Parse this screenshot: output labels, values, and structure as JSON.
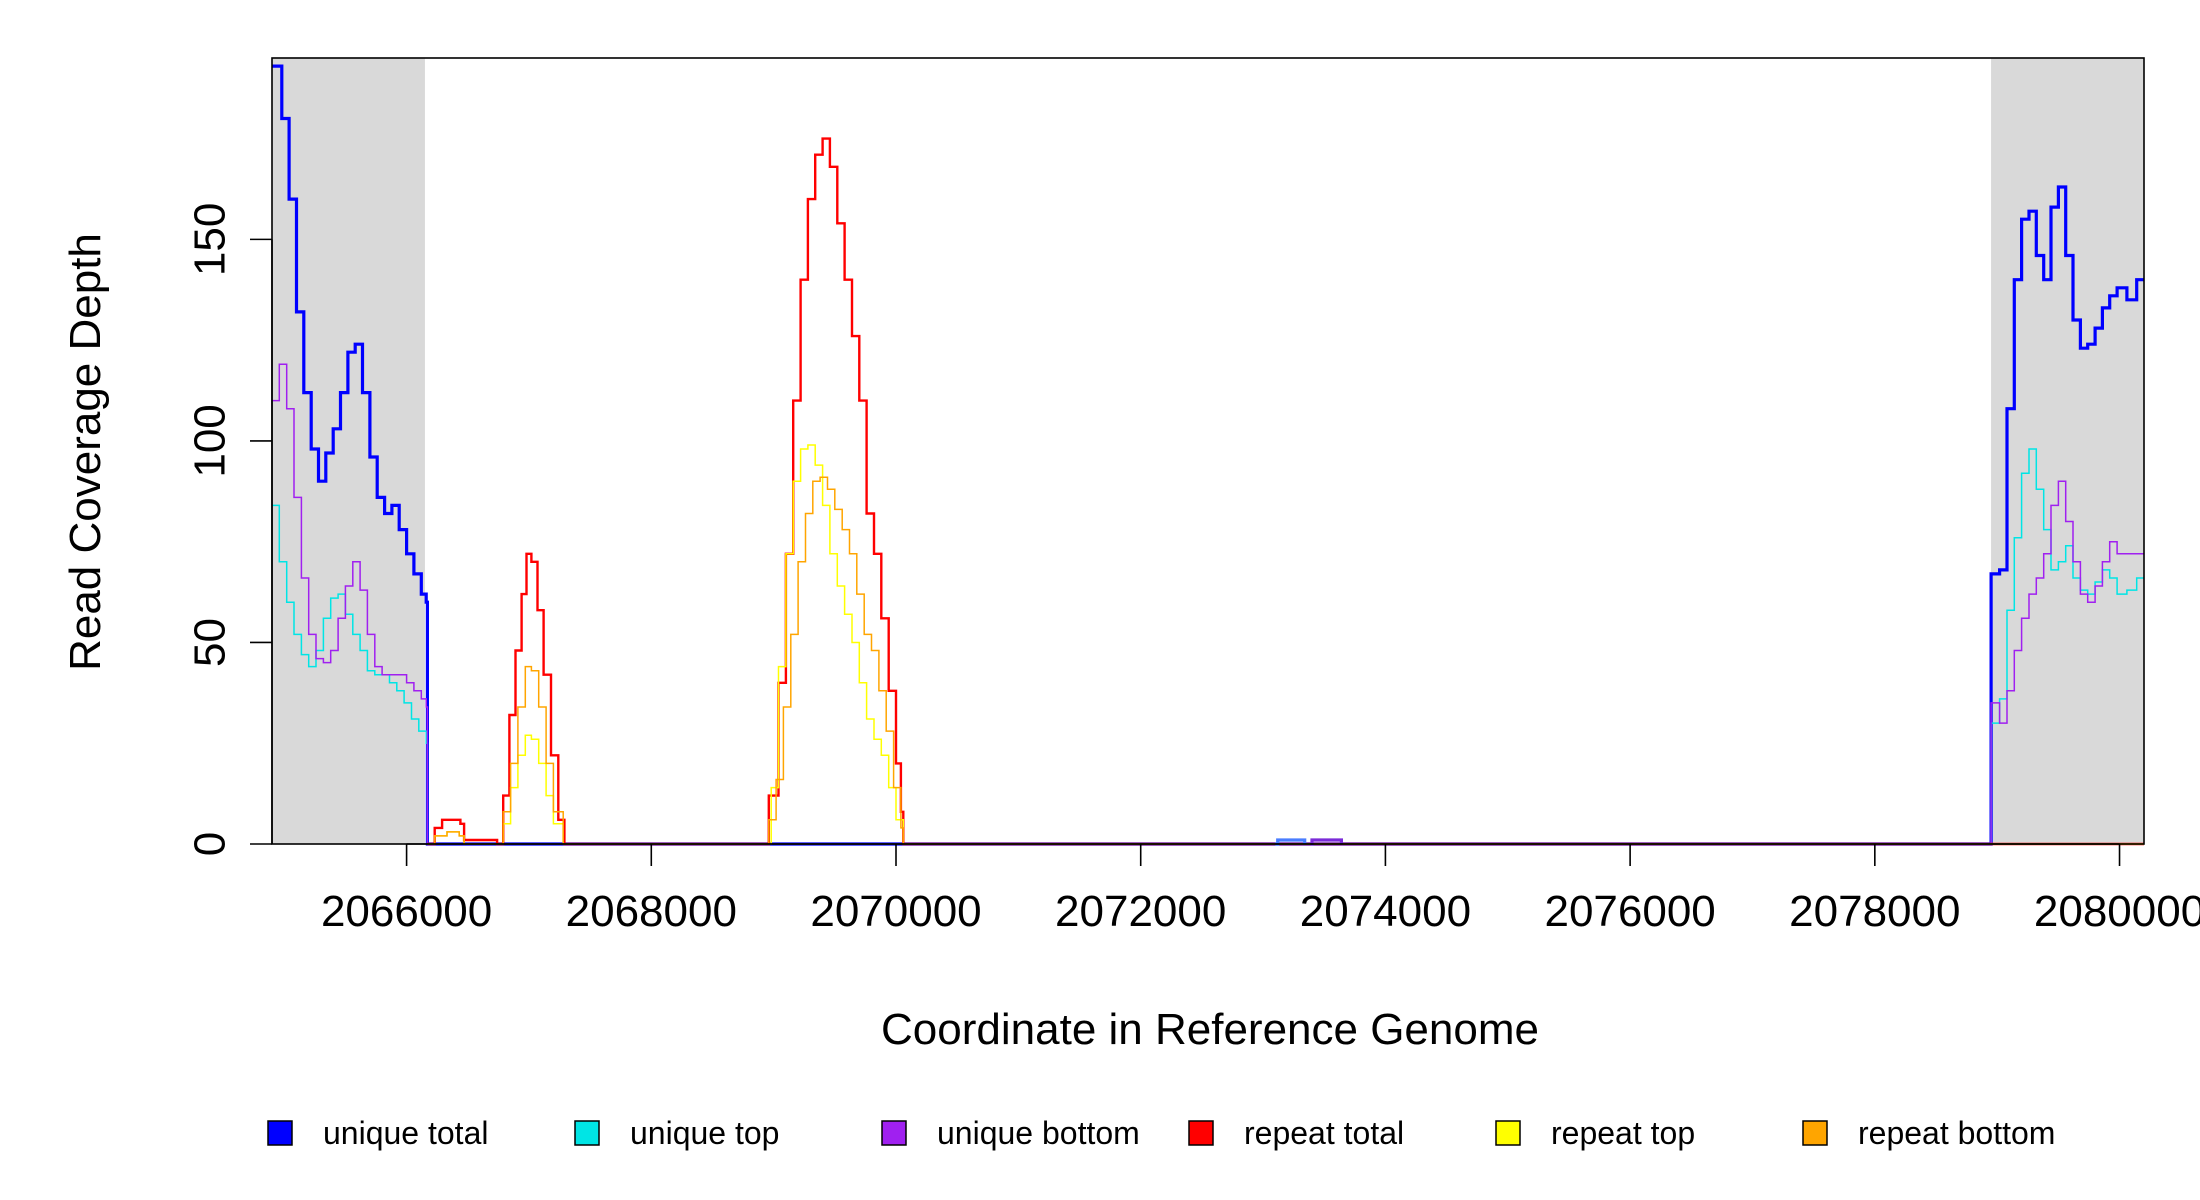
{
  "chart_data": {
    "type": "line",
    "xlabel": "Coordinate in Reference Genome",
    "ylabel": "Read Coverage Depth",
    "xlim": [
      2064900,
      2080200
    ],
    "ylim": [
      0,
      195
    ],
    "x_ticks": [
      2066000,
      2068000,
      2070000,
      2072000,
      2074000,
      2076000,
      2078000,
      2080000
    ],
    "x_tick_labels": [
      "2066000",
      "2068000",
      "2070000",
      "2072000",
      "2074000",
      "2076000",
      "2078000",
      "2080000"
    ],
    "y_ticks": [
      0,
      50,
      100,
      150
    ],
    "y_tick_labels": [
      "0",
      "50",
      "100",
      "150"
    ],
    "shaded_regions": [
      {
        "from": 2064900,
        "to": 2066150,
        "color": "#d9d9d9"
      },
      {
        "from": 2078950,
        "to": 2080200,
        "color": "#d9d9d9"
      }
    ],
    "legend_position": "bottom",
    "series": [
      {
        "name": "unique total",
        "color": "#0000ff",
        "width": 3.2,
        "points": [
          [
            2064900,
            193
          ],
          [
            2064980,
            180
          ],
          [
            2065040,
            160
          ],
          [
            2065100,
            132
          ],
          [
            2065160,
            112
          ],
          [
            2065220,
            98
          ],
          [
            2065280,
            90
          ],
          [
            2065340,
            97
          ],
          [
            2065400,
            103
          ],
          [
            2065460,
            112
          ],
          [
            2065520,
            122
          ],
          [
            2065580,
            124
          ],
          [
            2065640,
            112
          ],
          [
            2065700,
            96
          ],
          [
            2065760,
            86
          ],
          [
            2065820,
            82
          ],
          [
            2065880,
            84
          ],
          [
            2065940,
            78
          ],
          [
            2066000,
            72
          ],
          [
            2066060,
            67
          ],
          [
            2066120,
            62
          ],
          [
            2066160,
            60
          ],
          [
            2066170,
            0
          ],
          [
            2073100,
            0
          ],
          [
            2078940,
            0
          ],
          [
            2078950,
            67
          ],
          [
            2079020,
            68
          ],
          [
            2079080,
            108
          ],
          [
            2079140,
            140
          ],
          [
            2079200,
            155
          ],
          [
            2079260,
            157
          ],
          [
            2079320,
            146
          ],
          [
            2079380,
            140
          ],
          [
            2079440,
            158
          ],
          [
            2079500,
            163
          ],
          [
            2079560,
            146
          ],
          [
            2079620,
            130
          ],
          [
            2079680,
            123
          ],
          [
            2079740,
            124
          ],
          [
            2079800,
            128
          ],
          [
            2079860,
            133
          ],
          [
            2079920,
            136
          ],
          [
            2079980,
            138
          ],
          [
            2080060,
            135
          ],
          [
            2080140,
            140
          ],
          [
            2080200,
            140
          ]
        ]
      },
      {
        "name": "unique top",
        "color": "#00e5e5",
        "width": 1.5,
        "points": [
          [
            2064900,
            84
          ],
          [
            2064960,
            70
          ],
          [
            2065020,
            60
          ],
          [
            2065080,
            52
          ],
          [
            2065140,
            47
          ],
          [
            2065200,
            44
          ],
          [
            2065260,
            48
          ],
          [
            2065320,
            56
          ],
          [
            2065380,
            61
          ],
          [
            2065440,
            62
          ],
          [
            2065500,
            57
          ],
          [
            2065560,
            52
          ],
          [
            2065620,
            48
          ],
          [
            2065680,
            43
          ],
          [
            2065740,
            42
          ],
          [
            2065800,
            42
          ],
          [
            2065860,
            40
          ],
          [
            2065920,
            38
          ],
          [
            2065980,
            35
          ],
          [
            2066040,
            31
          ],
          [
            2066100,
            28
          ],
          [
            2066160,
            25
          ],
          [
            2066170,
            0
          ],
          [
            2078940,
            0
          ],
          [
            2078950,
            30
          ],
          [
            2079020,
            36
          ],
          [
            2079080,
            58
          ],
          [
            2079140,
            76
          ],
          [
            2079200,
            92
          ],
          [
            2079260,
            98
          ],
          [
            2079320,
            88
          ],
          [
            2079380,
            78
          ],
          [
            2079440,
            68
          ],
          [
            2079500,
            70
          ],
          [
            2079560,
            74
          ],
          [
            2079620,
            66
          ],
          [
            2079680,
            63
          ],
          [
            2079740,
            62
          ],
          [
            2079800,
            65
          ],
          [
            2079860,
            68
          ],
          [
            2079920,
            66
          ],
          [
            2079980,
            62
          ],
          [
            2080060,
            63
          ],
          [
            2080140,
            66
          ],
          [
            2080200,
            66
          ]
        ]
      },
      {
        "name": "unique bottom",
        "color": "#a020f0",
        "width": 1.5,
        "points": [
          [
            2064900,
            110
          ],
          [
            2064960,
            119
          ],
          [
            2065020,
            108
          ],
          [
            2065080,
            86
          ],
          [
            2065140,
            66
          ],
          [
            2065200,
            52
          ],
          [
            2065260,
            46
          ],
          [
            2065320,
            45
          ],
          [
            2065380,
            48
          ],
          [
            2065440,
            56
          ],
          [
            2065500,
            64
          ],
          [
            2065560,
            70
          ],
          [
            2065620,
            63
          ],
          [
            2065680,
            52
          ],
          [
            2065740,
            44
          ],
          [
            2065800,
            42
          ],
          [
            2065860,
            42
          ],
          [
            2065920,
            42
          ],
          [
            2066000,
            40
          ],
          [
            2066060,
            38
          ],
          [
            2066120,
            36
          ],
          [
            2066160,
            34
          ],
          [
            2066170,
            0
          ],
          [
            2078940,
            0
          ],
          [
            2078950,
            35
          ],
          [
            2079020,
            30
          ],
          [
            2079080,
            38
          ],
          [
            2079140,
            48
          ],
          [
            2079200,
            56
          ],
          [
            2079260,
            62
          ],
          [
            2079320,
            66
          ],
          [
            2079380,
            72
          ],
          [
            2079440,
            84
          ],
          [
            2079500,
            90
          ],
          [
            2079560,
            80
          ],
          [
            2079620,
            70
          ],
          [
            2079680,
            62
          ],
          [
            2079740,
            60
          ],
          [
            2079800,
            64
          ],
          [
            2079860,
            70
          ],
          [
            2079920,
            75
          ],
          [
            2079980,
            72
          ],
          [
            2080060,
            72
          ],
          [
            2080140,
            72
          ],
          [
            2080200,
            72
          ]
        ]
      },
      {
        "name": "repeat total",
        "color": "#ff0000",
        "width": 2.4,
        "points": [
          [
            2066170,
            0
          ],
          [
            2066230,
            4
          ],
          [
            2066290,
            6
          ],
          [
            2066360,
            6
          ],
          [
            2066440,
            5
          ],
          [
            2066470,
            1
          ],
          [
            2066740,
            0
          ],
          [
            2066790,
            12
          ],
          [
            2066840,
            32
          ],
          [
            2066890,
            48
          ],
          [
            2066940,
            62
          ],
          [
            2066980,
            72
          ],
          [
            2067020,
            70
          ],
          [
            2067070,
            58
          ],
          [
            2067120,
            42
          ],
          [
            2067180,
            22
          ],
          [
            2067240,
            6
          ],
          [
            2067290,
            0
          ],
          [
            2068940,
            0
          ],
          [
            2068960,
            12
          ],
          [
            2069040,
            40
          ],
          [
            2069100,
            72
          ],
          [
            2069160,
            110
          ],
          [
            2069220,
            140
          ],
          [
            2069280,
            160
          ],
          [
            2069340,
            171
          ],
          [
            2069400,
            175
          ],
          [
            2069460,
            168
          ],
          [
            2069520,
            154
          ],
          [
            2069580,
            140
          ],
          [
            2069640,
            126
          ],
          [
            2069700,
            110
          ],
          [
            2069760,
            82
          ],
          [
            2069820,
            72
          ],
          [
            2069880,
            56
          ],
          [
            2069940,
            38
          ],
          [
            2070000,
            20
          ],
          [
            2070040,
            8
          ],
          [
            2070060,
            0
          ],
          [
            2080200,
            0
          ]
        ]
      },
      {
        "name": "repeat top",
        "color": "#ffff00",
        "width": 1.5,
        "points": [
          [
            2066170,
            0
          ],
          [
            2066230,
            2
          ],
          [
            2066330,
            3
          ],
          [
            2066430,
            2
          ],
          [
            2066470,
            0
          ],
          [
            2066740,
            0
          ],
          [
            2066790,
            5
          ],
          [
            2066850,
            14
          ],
          [
            2066910,
            22
          ],
          [
            2066970,
            27
          ],
          [
            2067020,
            26
          ],
          [
            2067080,
            20
          ],
          [
            2067140,
            12
          ],
          [
            2067200,
            5
          ],
          [
            2067280,
            0
          ],
          [
            2068940,
            0
          ],
          [
            2068980,
            14
          ],
          [
            2069040,
            44
          ],
          [
            2069100,
            72
          ],
          [
            2069160,
            90
          ],
          [
            2069220,
            98
          ],
          [
            2069280,
            99
          ],
          [
            2069340,
            94
          ],
          [
            2069400,
            84
          ],
          [
            2069460,
            72
          ],
          [
            2069520,
            64
          ],
          [
            2069580,
            57
          ],
          [
            2069640,
            50
          ],
          [
            2069700,
            40
          ],
          [
            2069760,
            31
          ],
          [
            2069820,
            26
          ],
          [
            2069880,
            22
          ],
          [
            2069940,
            14
          ],
          [
            2070000,
            6
          ],
          [
            2070060,
            0
          ],
          [
            2080200,
            0
          ]
        ]
      },
      {
        "name": "repeat bottom",
        "color": "#ffa500",
        "width": 1.5,
        "points": [
          [
            2066170,
            0
          ],
          [
            2066230,
            2
          ],
          [
            2066330,
            3
          ],
          [
            2066430,
            2
          ],
          [
            2066470,
            0
          ],
          [
            2066740,
            0
          ],
          [
            2066790,
            8
          ],
          [
            2066850,
            20
          ],
          [
            2066910,
            34
          ],
          [
            2066970,
            44
          ],
          [
            2067020,
            43
          ],
          [
            2067080,
            34
          ],
          [
            2067140,
            20
          ],
          [
            2067200,
            8
          ],
          [
            2067280,
            0
          ],
          [
            2068920,
            0
          ],
          [
            2068960,
            6
          ],
          [
            2069020,
            16
          ],
          [
            2069080,
            34
          ],
          [
            2069140,
            52
          ],
          [
            2069200,
            70
          ],
          [
            2069260,
            82
          ],
          [
            2069320,
            90
          ],
          [
            2069380,
            91
          ],
          [
            2069440,
            88
          ],
          [
            2069500,
            83
          ],
          [
            2069560,
            78
          ],
          [
            2069620,
            72
          ],
          [
            2069680,
            62
          ],
          [
            2069740,
            52
          ],
          [
            2069800,
            48
          ],
          [
            2069860,
            38
          ],
          [
            2069920,
            28
          ],
          [
            2069980,
            14
          ],
          [
            2070040,
            4
          ],
          [
            2070060,
            0
          ],
          [
            2080200,
            0
          ]
        ]
      },
      {
        "name": "",
        "color": "#4a7dff",
        "width": 3.2,
        "points": [
          [
            2073100,
            0
          ],
          [
            2073120,
            1
          ],
          [
            2073330,
            1
          ],
          [
            2073340,
            0
          ]
        ]
      },
      {
        "name": "",
        "color": "#7b2bd8",
        "width": 3.2,
        "points": [
          [
            2073390,
            0
          ],
          [
            2073400,
            1
          ],
          [
            2073630,
            1
          ],
          [
            2073640,
            0
          ]
        ]
      }
    ]
  }
}
